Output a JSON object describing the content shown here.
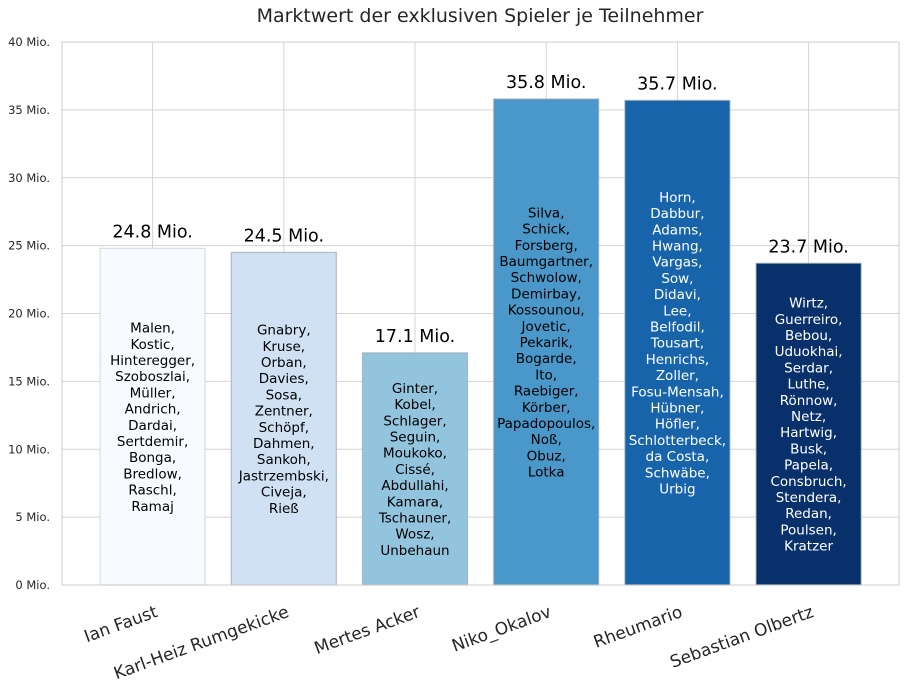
{
  "chart_data": {
    "type": "bar",
    "title": "Marktwert der exklusiven Spieler je Teilnehmer",
    "xlabel": "",
    "ylabel": "",
    "ylim": [
      0,
      40
    ],
    "yticks": [
      0,
      5,
      10,
      15,
      20,
      25,
      30,
      35,
      40
    ],
    "ytick_labels": [
      "0 Mio.",
      "5 Mio.",
      "10 Mio.",
      "15 Mio.",
      "20 Mio.",
      "25 Mio.",
      "30 Mio.",
      "35 Mio.",
      "40 Mio."
    ],
    "grid": true,
    "categories": [
      "Ian Faust",
      "Karl-Heiz Rumgekicke",
      "Mertes Acker",
      "Niko_Okalov",
      "Rheumario",
      "Sebastian Olbertz"
    ],
    "values": [
      24.8,
      24.5,
      17.1,
      35.8,
      35.7,
      23.7
    ],
    "value_labels": [
      "24.8 Mio.",
      "24.5 Mio.",
      "17.1 Mio.",
      "35.8 Mio.",
      "35.7 Mio.",
      "23.7 Mio."
    ],
    "bar_colors": [
      "#f7fbff",
      "#cfe1f2",
      "#93c4de",
      "#4a98c9",
      "#1764ab",
      "#08306b"
    ],
    "bar_text_colors": [
      "#000000",
      "#000000",
      "#000000",
      "#000000",
      "#ffffff",
      "#ffffff"
    ],
    "players": [
      [
        "Malen,",
        "Kostic,",
        "Hinteregger,",
        "Szoboszlai,",
        "Müller,",
        "Andrich,",
        "Dardai,",
        "Sertdemir,",
        "Bonga,",
        "Bredlow,",
        "Raschl,",
        "Ramaj"
      ],
      [
        "Gnabry,",
        "Kruse,",
        "Orban,",
        "Davies,",
        "Sosa,",
        "Zentner,",
        "Schöpf,",
        "Dahmen,",
        "Sankoh,",
        "Jastrzembski,",
        "Civeja,",
        "Rieß"
      ],
      [
        "Ginter,",
        "Kobel,",
        "Schlager,",
        "Seguin,",
        "Moukoko,",
        "Cissé,",
        "Abdullahi,",
        "Kamara,",
        "Tschauner,",
        "Wosz,",
        "Unbehaun"
      ],
      [
        "Silva,",
        "Schick,",
        "Forsberg,",
        "Baumgartner,",
        "Schwolow,",
        "Demirbay,",
        "Kossounou,",
        "Jovetic,",
        "Pekarik,",
        "Bogarde,",
        "Ito,",
        "Raebiger,",
        "Körber,",
        "Papadopoulos,",
        "Noß,",
        "Obuz,",
        "Lotka"
      ],
      [
        "Horn,",
        "Dabbur,",
        "Adams,",
        "Hwang,",
        "Vargas,",
        "Sow,",
        "Didavi,",
        "Lee,",
        "Belfodil,",
        "Tousart,",
        "Henrichs,",
        "Zoller,",
        "Fosu-Mensah,",
        "Hübner,",
        "Höfler,",
        "Schlotterbeck,",
        "da Costa,",
        "Schwäbe,",
        "Urbig"
      ],
      [
        "Wirtz,",
        "Guerreiro,",
        "Bebou,",
        "Uduokhai,",
        "Serdar,",
        "Luthe,",
        "Rönnow,",
        "Netz,",
        "Hartwig,",
        "Busk,",
        "Papela,",
        "Consbruch,",
        "Stendera,",
        "Redan,",
        "Poulsen,",
        "Kratzer"
      ]
    ]
  }
}
